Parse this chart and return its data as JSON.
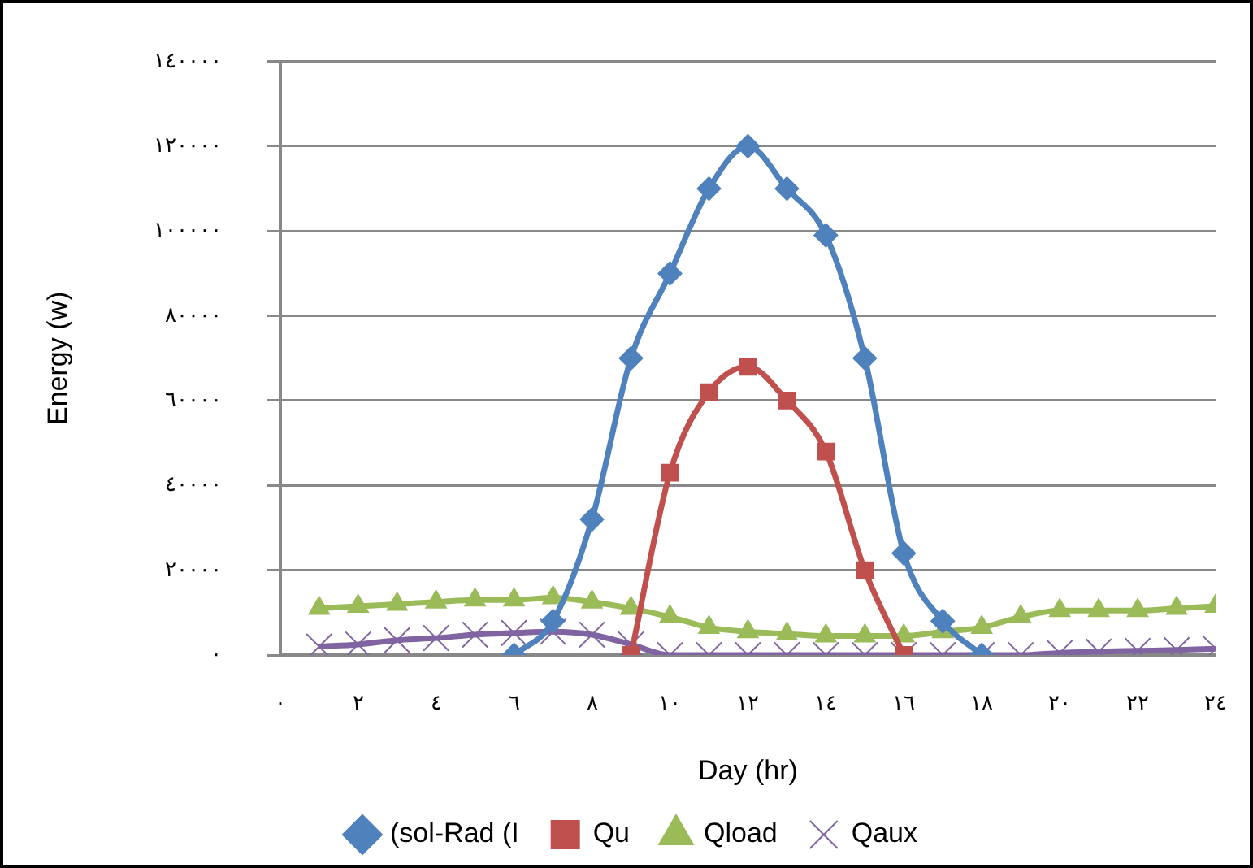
{
  "chart_data": {
    "type": "line",
    "xlabel": "Day (hr)",
    "ylabel": "Energy (w)",
    "xlim": [
      0,
      24
    ],
    "xticks": [
      {
        "value": 0,
        "label": "٠"
      },
      {
        "value": 2,
        "label": "٢"
      },
      {
        "value": 4,
        "label": "٤"
      },
      {
        "value": 6,
        "label": "٦"
      },
      {
        "value": 8,
        "label": "٨"
      },
      {
        "value": 10,
        "label": "١٠"
      },
      {
        "value": 12,
        "label": "١٢"
      },
      {
        "value": 14,
        "label": "١٤"
      },
      {
        "value": 16,
        "label": "١٦"
      },
      {
        "value": 18,
        "label": "١٨"
      },
      {
        "value": 20,
        "label": "٢٠"
      },
      {
        "value": 22,
        "label": "٢٢"
      },
      {
        "value": 24,
        "label": "٢٤"
      }
    ],
    "ylim": [
      0,
      140000
    ],
    "yticks": [
      {
        "value": 0,
        "label": "٠"
      },
      {
        "value": 20000,
        "label": "٢٠٠٠٠"
      },
      {
        "value": 40000,
        "label": "٤٠٠٠٠"
      },
      {
        "value": 60000,
        "label": "٦٠٠٠٠"
      },
      {
        "value": 80000,
        "label": "٨٠٠٠٠"
      },
      {
        "value": 100000,
        "label": "١٠٠٠٠٠"
      },
      {
        "value": 120000,
        "label": "١٢٠٠٠٠"
      },
      {
        "value": 140000,
        "label": "١٤٠٠٠٠"
      }
    ],
    "grid": "y",
    "legend": "bottom",
    "line_style": "solid",
    "series": [
      {
        "name": "(sol-Rad (I",
        "color": "#4f81bd",
        "marker": "diamond",
        "x": [
          6,
          7,
          8,
          9,
          10,
          11,
          12,
          13,
          14,
          15,
          16,
          17,
          18
        ],
        "values": [
          0,
          8000,
          32000,
          70000,
          90000,
          110000,
          120000,
          110000,
          99000,
          70000,
          24000,
          8000,
          0
        ]
      },
      {
        "name": "Qu",
        "color": "#c0504d",
        "marker": "square",
        "x": [
          9,
          10,
          11,
          12,
          13,
          14,
          15,
          16
        ],
        "values": [
          0,
          43000,
          62000,
          68000,
          60000,
          48000,
          20000,
          0
        ]
      },
      {
        "name": "Qload",
        "color": "#9bbb59",
        "marker": "triangle",
        "x": [
          1,
          2,
          3,
          4,
          5,
          6,
          7,
          8,
          9,
          10,
          11,
          12,
          13,
          14,
          15,
          16,
          17,
          18,
          19,
          20,
          21,
          22,
          23,
          24
        ],
        "values": [
          11000,
          11500,
          12000,
          12500,
          13000,
          13000,
          13500,
          12500,
          11000,
          9000,
          6500,
          5500,
          5000,
          4500,
          4500,
          4500,
          5500,
          6500,
          9000,
          10500,
          10500,
          10500,
          11000,
          11500
        ]
      },
      {
        "name": "Qaux",
        "color": "#8064a2",
        "marker": "cross",
        "x": [
          1,
          2,
          3,
          4,
          5,
          6,
          7,
          8,
          9,
          10,
          11,
          12,
          13,
          14,
          15,
          16,
          17,
          18,
          19,
          20,
          21,
          22,
          23,
          24
        ],
        "values": [
          2000,
          2500,
          3500,
          4000,
          4800,
          5200,
          5500,
          4800,
          2500,
          0,
          0,
          0,
          0,
          0,
          0,
          0,
          0,
          0,
          0,
          500,
          800,
          1000,
          1200,
          1500
        ]
      }
    ]
  }
}
